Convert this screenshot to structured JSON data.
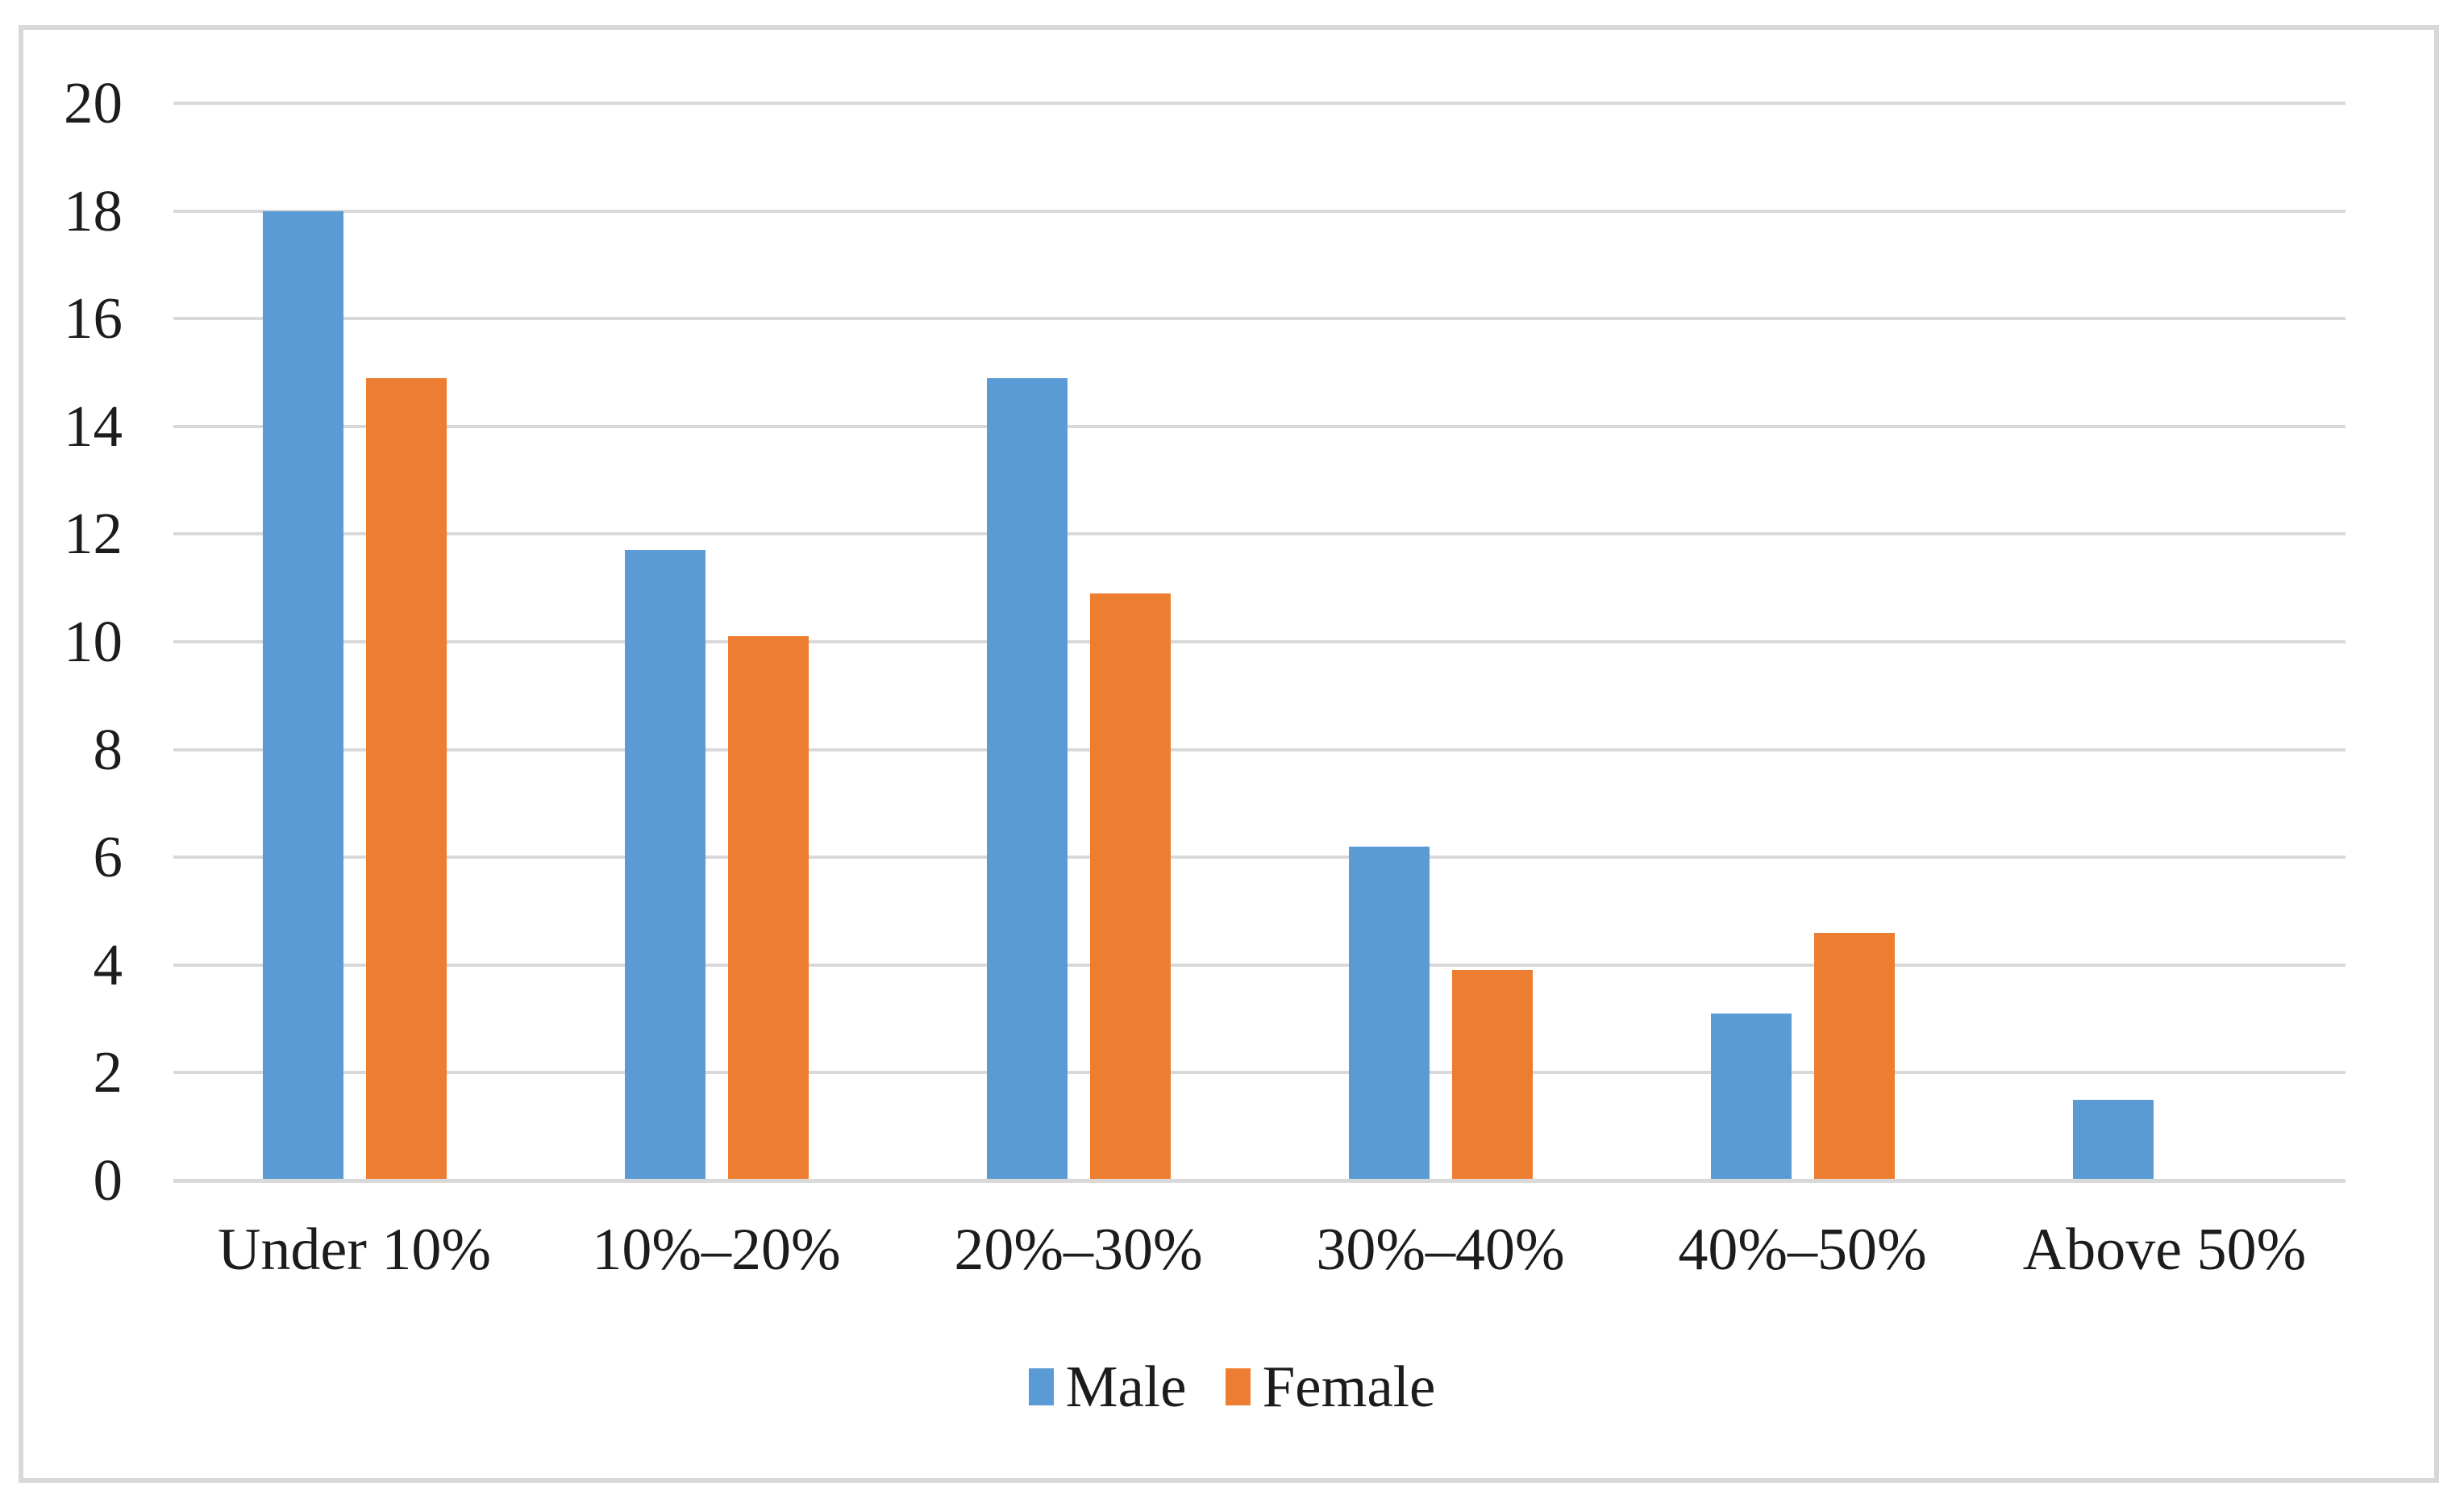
{
  "chart_data": {
    "type": "bar",
    "title": "",
    "xlabel": "",
    "ylabel": "",
    "categories": [
      "Under 10%",
      "10%–20%",
      "20%–30%",
      "30%–40%",
      "40%–50%",
      "Above 50%"
    ],
    "series": [
      {
        "name": "Male",
        "color": "#5B9BD5",
        "values": [
          18,
          11.7,
          14.9,
          6.2,
          3.1,
          1.5
        ]
      },
      {
        "name": "Female",
        "color": "#ED7D31",
        "values": [
          14.9,
          10.1,
          10.9,
          3.9,
          4.6,
          0
        ]
      }
    ],
    "ylim": [
      0,
      20
    ],
    "yticks": [
      0,
      2,
      4,
      6,
      8,
      10,
      12,
      14,
      16,
      18,
      20
    ],
    "grid": true,
    "legend_position": "bottom",
    "colors": {
      "gridline": "#D9D9D9",
      "frame_border": "#D8D8D8",
      "text": "#1C1C1C",
      "background": "#FFFFFF"
    }
  }
}
